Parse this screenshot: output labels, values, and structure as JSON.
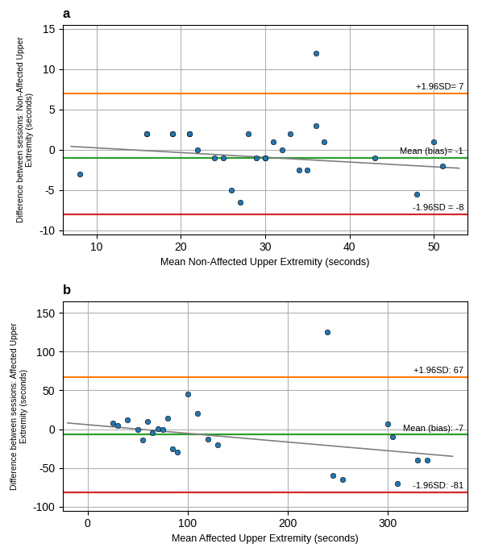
{
  "chart_data": [
    {
      "type": "scatter",
      "title": "a",
      "x": [
        8,
        16,
        16,
        19,
        19,
        21,
        21,
        22,
        24,
        25,
        26,
        27,
        28,
        29,
        30,
        30,
        31,
        32,
        33,
        34,
        35,
        36,
        36,
        37,
        43,
        48,
        50,
        51
      ],
      "values": [
        -3,
        2,
        2,
        2,
        2,
        2,
        2,
        0,
        -1,
        -1,
        -5,
        -6.5,
        2,
        -1,
        -1,
        -1,
        1,
        0,
        2,
        -2.5,
        -2.5,
        12,
        3,
        1,
        -1,
        -5.5,
        1,
        -2
      ],
      "xlabel": "Mean Non-Affected Upper Extremity (seconds)",
      "ylabel": "Difference between sessions: Non-Affected Upper\nExtremity (seconds)",
      "xlim": [
        6,
        54
      ],
      "ylim": [
        -10.5,
        15.5
      ],
      "xticks": [
        10,
        20,
        30,
        40,
        50
      ],
      "yticks": [
        -10,
        -5,
        0,
        5,
        10,
        15
      ],
      "grid": true,
      "reference_lines": [
        {
          "y": 7,
          "label": "+1.96SD= 7"
        },
        {
          "y": -1,
          "label": "Mean (bias)= -1"
        },
        {
          "y": -8,
          "label": "-1.96SD = -8"
        }
      ],
      "trend_line": {
        "x": [
          7,
          53
        ],
        "y": [
          0.4,
          -2.3
        ]
      }
    },
    {
      "type": "scatter",
      "title": "b",
      "x": [
        25,
        30,
        40,
        50,
        55,
        60,
        65,
        70,
        75,
        80,
        85,
        90,
        100,
        110,
        120,
        130,
        240,
        245,
        255,
        300,
        305,
        310,
        330,
        340
      ],
      "values": [
        8,
        5,
        12,
        0,
        -14,
        10,
        -5,
        1,
        0,
        14,
        -25,
        -30,
        45,
        20,
        -13,
        -20,
        125,
        -60,
        -65,
        7,
        -10,
        -70,
        -40,
        -40
      ],
      "xlabel": "Mean Affected Upper Extremity (seconds)",
      "ylabel": "Difference between sessions: Affected Upper\nExtremity (seconds)",
      "xlim": [
        -25,
        380
      ],
      "ylim": [
        -105,
        165
      ],
      "xticks": [
        0,
        100,
        200,
        300
      ],
      "yticks": [
        -100,
        -50,
        0,
        50,
        100,
        150
      ],
      "grid": true,
      "reference_lines": [
        {
          "y": 67,
          "label": "+1.96SD: 67"
        },
        {
          "y": -7,
          "label": "Mean (bias): -7"
        },
        {
          "y": -81,
          "label": "-1.96SD: -81"
        }
      ],
      "trend_line": {
        "x": [
          -20,
          365
        ],
        "y": [
          8,
          -35
        ]
      }
    }
  ]
}
